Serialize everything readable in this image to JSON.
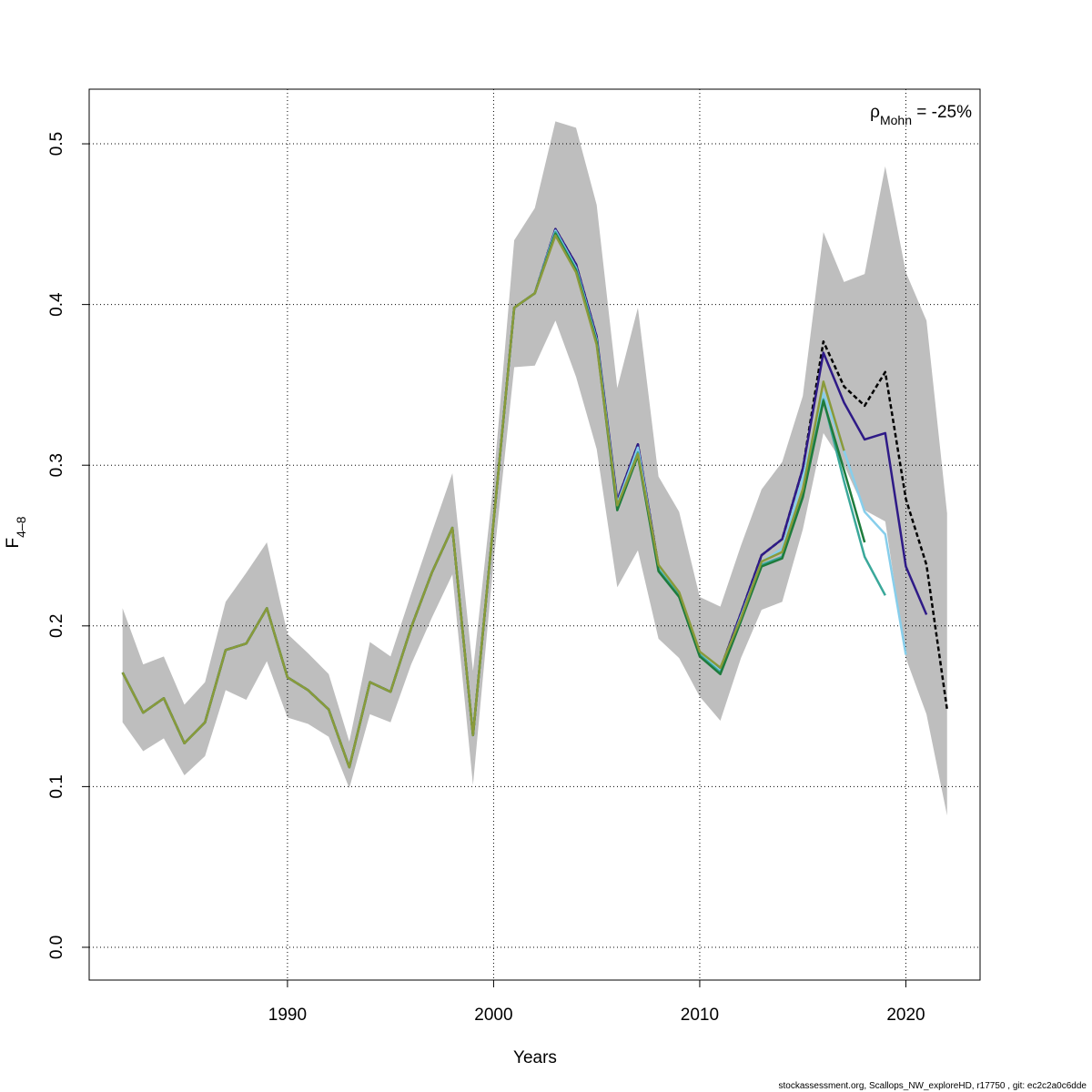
{
  "chart_data": {
    "type": "line",
    "xlabel": "Years",
    "ylabel": "F",
    "ylabel_sub": "4–8",
    "annotation": {
      "symbol": "ρ",
      "sub": "Mohn",
      "text": " = -25%"
    },
    "footer": "stockassessment.org, Scallops_NW_exploreHD, r17750 , git: ec2c2a0c6dde",
    "x": [
      1982,
      1983,
      1984,
      1985,
      1986,
      1987,
      1988,
      1989,
      1990,
      1991,
      1992,
      1993,
      1994,
      1995,
      1996,
      1997,
      1998,
      1999,
      2000,
      2001,
      2002,
      2003,
      2004,
      2005,
      2006,
      2007,
      2008,
      2009,
      2010,
      2011,
      2012,
      2013,
      2014,
      2015,
      2016,
      2017,
      2018,
      2019,
      2020,
      2021,
      2022
    ],
    "band": {
      "color": "#bebebe",
      "upper": [
        0.211,
        0.176,
        0.181,
        0.151,
        0.165,
        0.215,
        0.233,
        0.252,
        0.195,
        0.183,
        0.17,
        0.128,
        0.19,
        0.181,
        0.22,
        0.258,
        0.295,
        0.172,
        0.29,
        0.44,
        0.46,
        0.514,
        0.51,
        0.462,
        0.348,
        0.398,
        0.293,
        0.271,
        0.218,
        0.212,
        0.25,
        0.285,
        0.302,
        0.343,
        0.445,
        0.414,
        0.419,
        0.486,
        0.42,
        0.39,
        0.27
      ],
      "lower": [
        0.14,
        0.122,
        0.13,
        0.107,
        0.119,
        0.16,
        0.154,
        0.178,
        0.143,
        0.139,
        0.131,
        0.099,
        0.145,
        0.14,
        0.176,
        0.205,
        0.232,
        0.101,
        0.24,
        0.361,
        0.362,
        0.39,
        0.355,
        0.31,
        0.224,
        0.247,
        0.192,
        0.18,
        0.156,
        0.141,
        0.18,
        0.21,
        0.215,
        0.26,
        0.32,
        0.3,
        0.272,
        0.265,
        0.18,
        0.145,
        0.082
      ]
    },
    "series": [
      {
        "color": "#000000",
        "dashed": true,
        "values": [
          0.171,
          0.146,
          0.155,
          0.127,
          0.14,
          0.185,
          0.189,
          0.211,
          0.168,
          0.16,
          0.148,
          0.112,
          0.165,
          0.159,
          0.199,
          0.233,
          0.261,
          0.132,
          0.265,
          0.398,
          0.407,
          0.447,
          0.425,
          0.38,
          0.278,
          0.313,
          0.237,
          0.22,
          0.183,
          0.173,
          0.208,
          0.244,
          0.254,
          0.298,
          0.377,
          0.349,
          0.337,
          0.358,
          0.279,
          0.238,
          0.148
        ]
      },
      {
        "color": "#2e1a87",
        "values": [
          0.171,
          0.146,
          0.155,
          0.127,
          0.14,
          0.185,
          0.189,
          0.211,
          0.168,
          0.16,
          0.148,
          0.112,
          0.165,
          0.159,
          0.199,
          0.233,
          0.261,
          0.132,
          0.265,
          0.398,
          0.407,
          0.447,
          0.425,
          0.38,
          0.278,
          0.313,
          0.237,
          0.22,
          0.183,
          0.173,
          0.208,
          0.244,
          0.254,
          0.298,
          0.37,
          0.339,
          0.316,
          0.32,
          0.237,
          0.207,
          null
        ]
      },
      {
        "color": "#87ceeb",
        "values": [
          0.171,
          0.146,
          0.155,
          0.127,
          0.14,
          0.185,
          0.189,
          0.211,
          0.168,
          0.16,
          0.148,
          0.112,
          0.165,
          0.159,
          0.199,
          0.233,
          0.261,
          0.132,
          0.265,
          0.398,
          0.407,
          0.446,
          0.423,
          0.378,
          0.276,
          0.311,
          0.236,
          0.22,
          0.183,
          0.172,
          0.206,
          0.24,
          0.248,
          0.292,
          0.345,
          0.309,
          0.271,
          0.257,
          0.182,
          null,
          null
        ]
      },
      {
        "color": "#3aa89a",
        "values": [
          0.171,
          0.146,
          0.155,
          0.127,
          0.14,
          0.185,
          0.189,
          0.211,
          0.168,
          0.16,
          0.148,
          0.112,
          0.165,
          0.159,
          0.199,
          0.233,
          0.261,
          0.132,
          0.265,
          0.398,
          0.407,
          0.445,
          0.422,
          0.377,
          0.274,
          0.308,
          0.235,
          0.219,
          0.182,
          0.171,
          0.204,
          0.238,
          0.243,
          0.282,
          0.341,
          0.29,
          0.243,
          0.219,
          null,
          null,
          null
        ]
      },
      {
        "color": "#1e7b3c",
        "values": [
          0.171,
          0.146,
          0.155,
          0.127,
          0.14,
          0.185,
          0.189,
          0.211,
          0.168,
          0.16,
          0.148,
          0.112,
          0.165,
          0.159,
          0.199,
          0.233,
          0.261,
          0.132,
          0.265,
          0.398,
          0.407,
          0.444,
          0.421,
          0.376,
          0.272,
          0.306,
          0.234,
          0.218,
          0.181,
          0.17,
          0.203,
          0.237,
          0.242,
          0.28,
          0.34,
          0.297,
          0.252,
          null,
          null,
          null,
          null
        ]
      },
      {
        "color": "#8a9a3a",
        "values": [
          0.171,
          0.146,
          0.155,
          0.127,
          0.14,
          0.185,
          0.189,
          0.211,
          0.168,
          0.16,
          0.148,
          0.112,
          0.165,
          0.159,
          0.199,
          0.233,
          0.261,
          0.132,
          0.265,
          0.398,
          0.407,
          0.443,
          0.42,
          0.375,
          0.275,
          0.307,
          0.238,
          0.221,
          0.184,
          0.174,
          0.205,
          0.24,
          0.246,
          0.285,
          0.352,
          0.309,
          null,
          null,
          null,
          null,
          null
        ]
      }
    ],
    "xlim": [
      1980.38,
      2023.6
    ],
    "ylim": [
      -0.0204,
      0.534
    ],
    "xticks": [
      1990,
      2000,
      2010,
      2020
    ],
    "yticks": [
      {
        "value": 0,
        "label": "0.0"
      },
      0.1,
      0.2,
      0.3,
      0.4,
      0.5
    ],
    "grid": true
  }
}
